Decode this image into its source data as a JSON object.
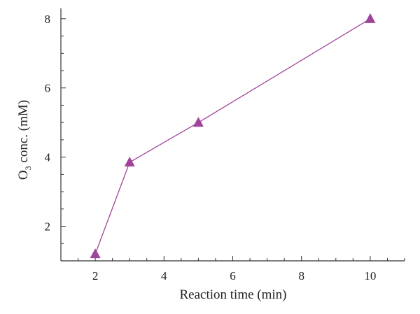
{
  "chart_data": {
    "type": "line",
    "title": "",
    "xlabel": "Reaction time (min)",
    "ylabel": {
      "prefix": "O",
      "subscript": "3",
      "suffix": " conc. (mM)"
    },
    "x": [
      2,
      3,
      5,
      10
    ],
    "series": [
      {
        "values": [
          1.2,
          3.85,
          5.0,
          8.0
        ]
      }
    ],
    "xlim": [
      1,
      11
    ],
    "ylim": [
      1,
      8.3
    ],
    "xticks": [
      2,
      4,
      6,
      8,
      10
    ],
    "yticks": [
      2,
      4,
      6,
      8
    ],
    "x_minor_step": 0.5,
    "y_minor_step": 0.5,
    "grid": false,
    "legend": "none",
    "marker": "triangle",
    "color": "#a0449a"
  }
}
